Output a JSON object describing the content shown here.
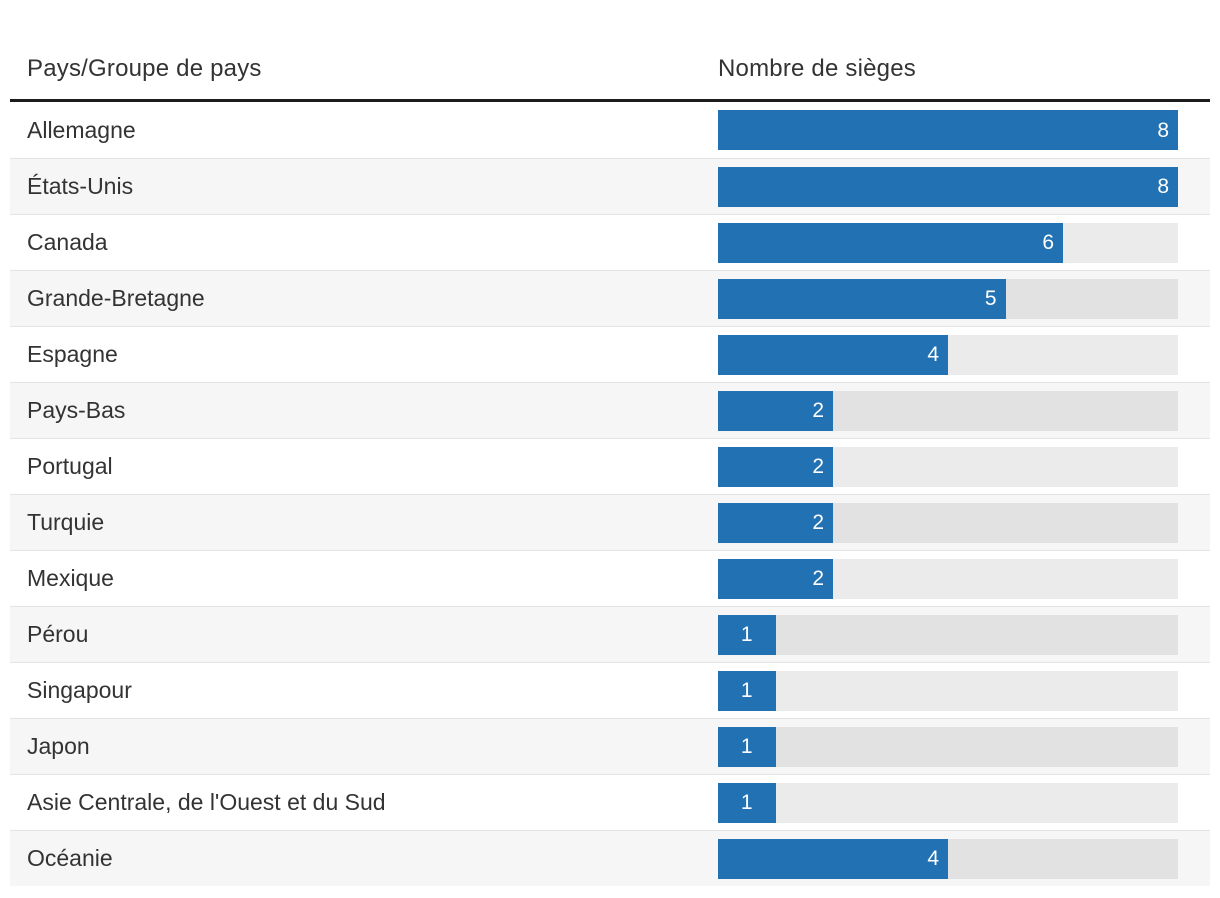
{
  "header": {
    "country_column": "Pays/Groupe de pays",
    "seats_column": "Nombre de sièges"
  },
  "chart_data": {
    "type": "bar",
    "orientation": "horizontal",
    "title": "",
    "category_axis_label": "Pays/Groupe de pays",
    "value_axis_label": "Nombre de sièges",
    "categories": [
      "Allemagne",
      "États-Unis",
      "Canada",
      "Grande-Bretagne",
      "Espagne",
      "Pays-Bas",
      "Portugal",
      "Turquie",
      "Mexique",
      "Pérou",
      "Singapour",
      "Japon",
      "Asie Centrale, de l'Ouest et du Sud",
      "Océanie"
    ],
    "values": [
      8,
      8,
      6,
      5,
      4,
      2,
      2,
      2,
      2,
      1,
      1,
      1,
      1,
      4
    ],
    "value_range": [
      0,
      8
    ],
    "value_labels_shown": true,
    "grid": false,
    "legend": false,
    "row_striping": true
  },
  "colors": {
    "bar_fill": "#2271b3",
    "bar_track": "rgba(0,0,0,0.08)",
    "row_stripe": "#f6f6f6",
    "header_rule": "#1c1c1c",
    "row_divider": "#e4e4e4",
    "text": "#333333",
    "value_label_text": "#ffffff",
    "background": "#ffffff"
  }
}
